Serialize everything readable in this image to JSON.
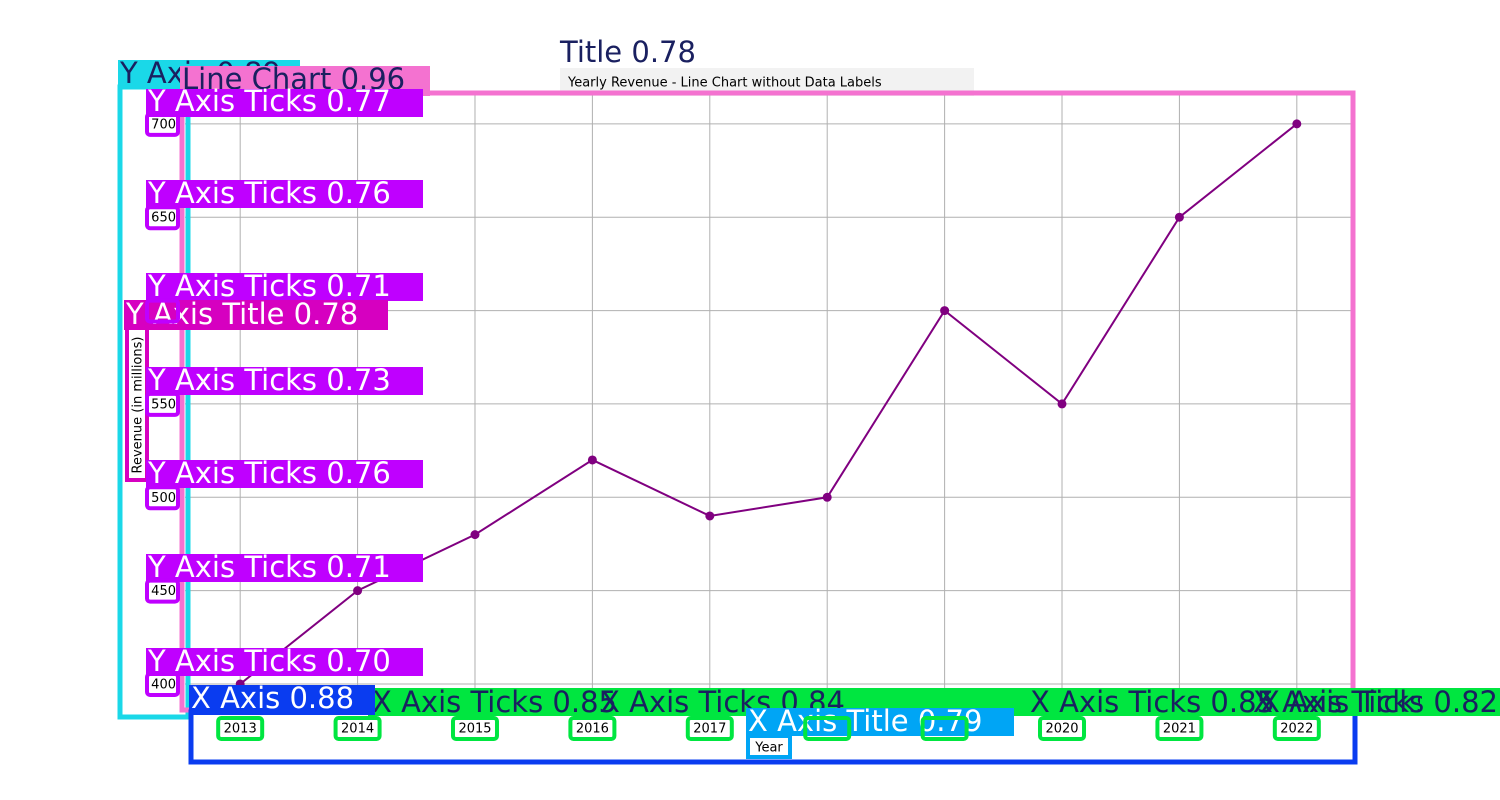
{
  "chart_data": {
    "type": "line",
    "title": "Yearly Revenue - Line Chart without Data Labels",
    "x_label": "Year",
    "y_label": "Revenue (in millions)",
    "categories": [
      "2013",
      "2014",
      "2015",
      "2016",
      "2017",
      "2018",
      "2019",
      "2020",
      "2021",
      "2022"
    ],
    "values": [
      400,
      450,
      480,
      520,
      490,
      500,
      600,
      550,
      650,
      700
    ],
    "color": "#800080",
    "ylim": [
      385,
      716
    ],
    "yticks": [
      400,
      450,
      500,
      550,
      600,
      650,
      700
    ],
    "grid": true
  },
  "annotations": [
    "Title 0.78",
    "Line Chart 0.96",
    "Y Axis 0.89",
    "Y Axis Title 0.78",
    "Y Axis Ticks 0.77",
    "Y Axis Ticks 0.76",
    "Y Axis Ticks 0.71",
    "Y Axis Ticks 0.73",
    "Y Axis Ticks 0.76",
    "Y Axis Ticks 0.71",
    "Y Axis Ticks 0.70",
    "X Axis 0.88",
    "X Axis Title 0.79",
    "X Axis Ticks 0.85",
    "X Axis Ticks 0.84",
    "X Axis Ticks 0.85",
    "X Axis Ticks 0.83",
    "X Axis Ticks 0.82"
  ]
}
